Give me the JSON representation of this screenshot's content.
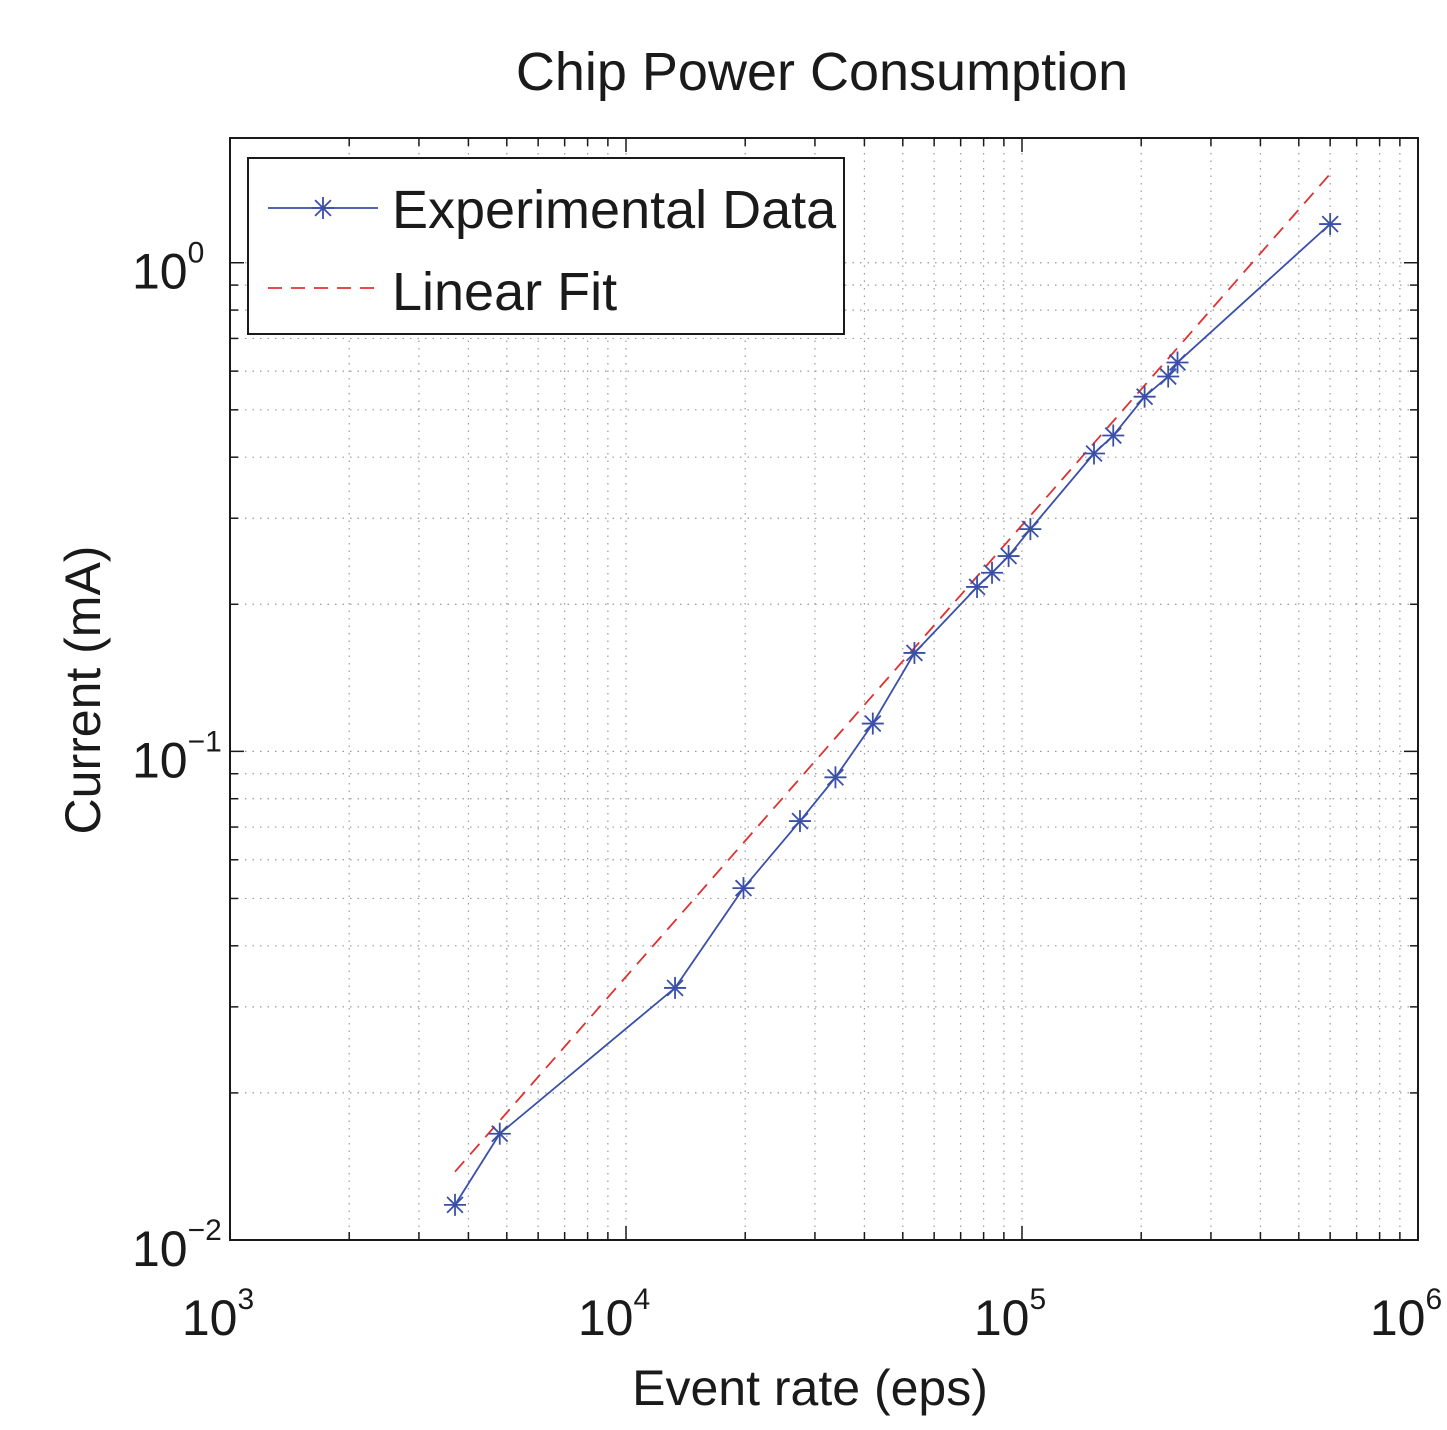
{
  "chart_data": {
    "type": "line",
    "title": "Chip Power Consumption",
    "xlabel": "Event rate (eps)",
    "ylabel": "Current (mA)",
    "xscale": "log",
    "yscale": "log",
    "xlim": [
      1000,
      1000000
    ],
    "ylim": [
      0.01,
      1.8
    ],
    "grid": true,
    "legend_position": "top-left",
    "x_ticks": [
      {
        "value": 1000,
        "base": "10",
        "exp": "3"
      },
      {
        "value": 10000,
        "base": "10",
        "exp": "4"
      },
      {
        "value": 100000,
        "base": "10",
        "exp": "5"
      },
      {
        "value": 1000000,
        "base": "10",
        "exp": "6"
      }
    ],
    "y_ticks": [
      {
        "value": 0.01,
        "base": "10",
        "exp": "−2"
      },
      {
        "value": 0.1,
        "base": "10",
        "exp": "−1"
      },
      {
        "value": 1,
        "base": "10",
        "exp": "0"
      }
    ],
    "series": [
      {
        "name": "Experimental Data",
        "color": "#3a4fa8",
        "style": "solid",
        "marker": "asterisk",
        "x": [
          3700,
          4800,
          13300,
          19800,
          27500,
          33800,
          42000,
          53500,
          77000,
          84000,
          92500,
          105000,
          152000,
          170000,
          204000,
          234000,
          247000,
          600000
        ],
        "y": [
          0.0118,
          0.0165,
          0.0328,
          0.0525,
          0.072,
          0.0885,
          0.114,
          0.159,
          0.217,
          0.232,
          0.251,
          0.285,
          0.407,
          0.443,
          0.532,
          0.585,
          0.625,
          1.2
        ]
      },
      {
        "name": "Linear Fit",
        "color": "#e03030",
        "style": "dashed",
        "marker": "none",
        "x": [
          3700,
          600000
        ],
        "y": [
          0.0138,
          1.52
        ]
      }
    ]
  }
}
